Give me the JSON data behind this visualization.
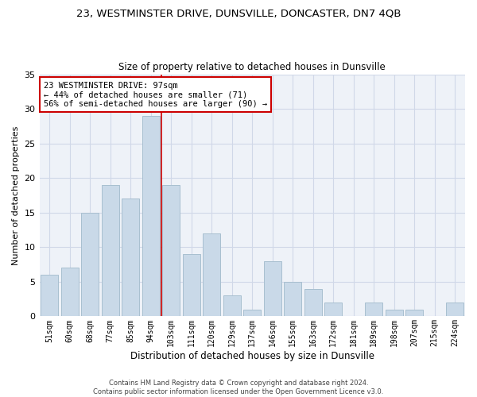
{
  "title": "23, WESTMINSTER DRIVE, DUNSVILLE, DONCASTER, DN7 4QB",
  "subtitle": "Size of property relative to detached houses in Dunsville",
  "xlabel": "Distribution of detached houses by size in Dunsville",
  "ylabel": "Number of detached properties",
  "categories": [
    "51sqm",
    "60sqm",
    "68sqm",
    "77sqm",
    "85sqm",
    "94sqm",
    "103sqm",
    "111sqm",
    "120sqm",
    "129sqm",
    "137sqm",
    "146sqm",
    "155sqm",
    "163sqm",
    "172sqm",
    "181sqm",
    "189sqm",
    "198sqm",
    "207sqm",
    "215sqm",
    "224sqm"
  ],
  "values": [
    6,
    7,
    15,
    19,
    17,
    29,
    19,
    9,
    12,
    3,
    1,
    8,
    5,
    4,
    2,
    0,
    2,
    1,
    1,
    0,
    2
  ],
  "bar_color": "#c9d9e8",
  "bar_edge_color": "#a8bfd0",
  "grid_color": "#d0d8e8",
  "bg_color": "#eef2f8",
  "vline_x": 5.5,
  "vline_color": "#cc0000",
  "annotation_text": "23 WESTMINSTER DRIVE: 97sqm\n← 44% of detached houses are smaller (71)\n56% of semi-detached houses are larger (90) →",
  "annotation_box_color": "#cc0000",
  "footnote": "Contains HM Land Registry data © Crown copyright and database right 2024.\nContains public sector information licensed under the Open Government Licence v3.0.",
  "ylim": [
    0,
    35
  ],
  "yticks": [
    0,
    5,
    10,
    15,
    20,
    25,
    30,
    35
  ]
}
